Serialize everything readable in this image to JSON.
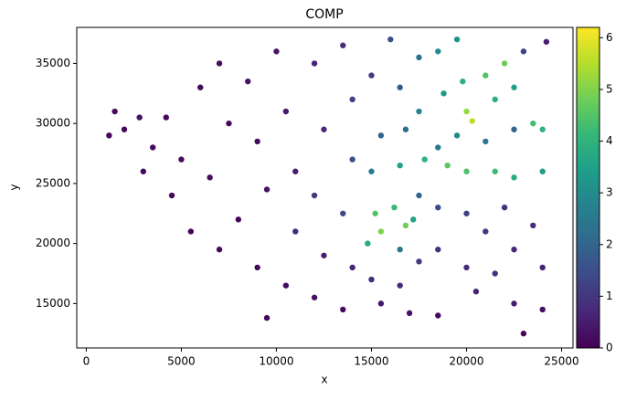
{
  "chart_data": {
    "type": "scatter",
    "title": "COMP",
    "x_label": "x",
    "y_label": "y",
    "x": [
      1500,
      2000,
      2800,
      1200,
      3500,
      4200,
      3000,
      5000,
      4500,
      6000,
      5500,
      7000,
      7500,
      6500,
      8000,
      7000,
      8500,
      9000,
      9500,
      9000,
      10000,
      10500,
      11000,
      11000,
      10500,
      12000,
      12500,
      12000,
      12500,
      12000,
      13500,
      14000,
      14000,
      13500,
      14000,
      13500,
      15000,
      15500,
      15000,
      15200,
      15500,
      14800,
      15000,
      15500,
      16000,
      16500,
      16800,
      16500,
      16200,
      16800,
      16500,
      16500,
      17500,
      17500,
      17800,
      17500,
      17200,
      17500,
      18500,
      18800,
      18500,
      19000,
      18500,
      18500,
      19500,
      19800,
      20000,
      20300,
      19500,
      20000,
      20000,
      20000,
      20500,
      21000,
      21500,
      21000,
      21500,
      21000,
      21500,
      22000,
      22500,
      22500,
      22500,
      22000,
      22500,
      22500,
      23000,
      23500,
      24000,
      24000,
      23500,
      24000,
      24000,
      24200,
      23000,
      18500,
      17000,
      9500
    ],
    "y": [
      31000,
      29500,
      30500,
      29000,
      28000,
      30500,
      26000,
      27000,
      24000,
      33000,
      21000,
      35000,
      30000,
      25500,
      22000,
      19500,
      33500,
      28500,
      24500,
      18000,
      36000,
      31000,
      26000,
      21000,
      16500,
      35000,
      29500,
      24000,
      19000,
      15500,
      36500,
      32000,
      27000,
      22500,
      18000,
      14500,
      34000,
      29000,
      26000,
      22500,
      21000,
      20000,
      17000,
      15000,
      37000,
      33000,
      29500,
      26500,
      23000,
      21500,
      19500,
      16500,
      35500,
      31000,
      27000,
      24000,
      22000,
      18500,
      36000,
      32500,
      28000,
      26500,
      23000,
      19500,
      37000,
      33500,
      31000,
      30200,
      29000,
      26000,
      22500,
      18000,
      16000,
      34000,
      32000,
      28500,
      26000,
      21000,
      17500,
      35000,
      33000,
      29500,
      25500,
      23000,
      19500,
      15000,
      36000,
      30000,
      29500,
      26000,
      21500,
      18000,
      14500,
      36800,
      12500,
      14000,
      14200,
      13800
    ],
    "values": [
      0.2,
      0.1,
      0.3,
      0.1,
      0.2,
      0.1,
      0.1,
      0.2,
      0.1,
      0.1,
      0.1,
      0.2,
      0.1,
      0.2,
      0.1,
      0.1,
      0.3,
      0.2,
      0.3,
      0.1,
      0.3,
      0.4,
      0.5,
      0.8,
      0.2,
      0.6,
      0.7,
      1.0,
      0.5,
      0.3,
      0.8,
      1.2,
      1.5,
      1.3,
      0.6,
      0.2,
      1.1,
      2.0,
      2.6,
      4.5,
      5.0,
      3.8,
      0.8,
      0.4,
      1.5,
      1.8,
      2.2,
      3.5,
      4.2,
      4.8,
      2.5,
      0.7,
      2.3,
      2.8,
      4.0,
      2.0,
      3.6,
      1.0,
      3.0,
      3.3,
      2.5,
      4.6,
      1.4,
      0.9,
      3.2,
      3.9,
      5.2,
      5.6,
      3.0,
      4.4,
      1.2,
      0.8,
      0.6,
      4.5,
      4.0,
      2.4,
      4.2,
      1.0,
      0.9,
      4.8,
      3.5,
      2.0,
      3.8,
      0.9,
      0.7,
      0.5,
      1.2,
      4.3,
      4.0,
      3.5,
      0.8,
      0.6,
      0.3,
      0.5,
      0.1,
      0.2,
      0.3,
      0.1
    ],
    "colormap": "viridis",
    "xlim": [
      -500,
      25600
    ],
    "xticks": [
      0,
      5000,
      10000,
      15000,
      20000,
      25000
    ],
    "ylim": [
      11300,
      38000
    ],
    "yticks": [
      15000,
      20000,
      25000,
      30000,
      35000
    ],
    "clim": [
      0,
      6.2
    ],
    "cticks": [
      0,
      1,
      2,
      3,
      4,
      5,
      6
    ]
  }
}
